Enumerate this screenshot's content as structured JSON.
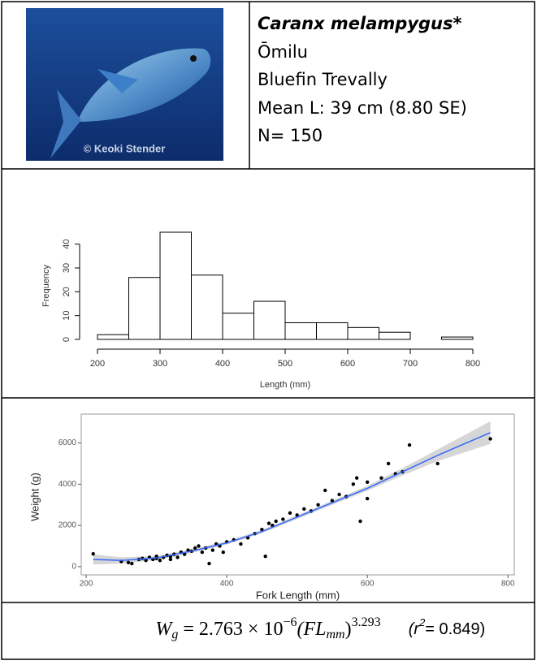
{
  "header": {
    "photo_credit": "© Keoki Stender",
    "scientific_name": "Caranx melampygus*",
    "hawaiian_name": "Ōmilu",
    "common_name": "Bluefin Trevally",
    "mean_length": "Mean L: 39 cm (8.80 SE)",
    "sample_size": "N= 150"
  },
  "histogram": {
    "type": "histogram",
    "bins": [
      200,
      250,
      300,
      350,
      400,
      450,
      500,
      550,
      600,
      650,
      700,
      750,
      800
    ],
    "counts": [
      2,
      26,
      45,
      27,
      11,
      16,
      7,
      7,
      5,
      3,
      0,
      1
    ],
    "color": "#ffffff",
    "xlim": [
      200,
      800
    ],
    "xticks": [
      200,
      300,
      400,
      500,
      600,
      700,
      800
    ],
    "ylim": [
      0,
      45
    ],
    "yticks": [
      0,
      10,
      20,
      30,
      40
    ],
    "xlabel": "Length (mm)",
    "ylabel": "Frequency"
  },
  "scatter": {
    "type": "scatter",
    "color": "#000000",
    "x": [
      210,
      250,
      260,
      265,
      275,
      280,
      285,
      290,
      295,
      300,
      300,
      305,
      310,
      315,
      320,
      320,
      325,
      330,
      335,
      340,
      345,
      350,
      355,
      360,
      365,
      370,
      375,
      380,
      385,
      390,
      395,
      400,
      410,
      420,
      430,
      440,
      450,
      455,
      460,
      465,
      470,
      480,
      490,
      500,
      510,
      520,
      530,
      540,
      550,
      560,
      570,
      580,
      585,
      590,
      600,
      600,
      620,
      630,
      640,
      650,
      660,
      700,
      775
    ],
    "y": [
      620,
      250,
      200,
      150,
      350,
      400,
      300,
      450,
      350,
      400,
      500,
      300,
      450,
      550,
      500,
      350,
      600,
      450,
      700,
      600,
      800,
      750,
      900,
      1000,
      700,
      900,
      150,
      800,
      1100,
      1000,
      700,
      1200,
      1300,
      1100,
      1400,
      1600,
      1800,
      500,
      2100,
      2000,
      2200,
      2300,
      2600,
      2500,
      2800,
      2700,
      3000,
      3700,
      3200,
      3500,
      3400,
      4000,
      4300,
      2200,
      3300,
      4100,
      4300,
      5000,
      4500,
      4600,
      5900,
      5000,
      6200
    ],
    "fit": {
      "color": "#3366ff",
      "x": [
        210,
        250,
        300,
        350,
        400,
        450,
        500,
        550,
        600,
        650,
        700,
        775
      ],
      "y": [
        350,
        300,
        420,
        750,
        1150,
        1700,
        2400,
        3100,
        3800,
        4600,
        5400,
        6500
      ],
      "lower": [
        100,
        150,
        320,
        660,
        1070,
        1620,
        2310,
        3000,
        3680,
        4420,
        5120,
        5950
      ],
      "upper": [
        600,
        450,
        520,
        840,
        1230,
        1780,
        2490,
        3200,
        3920,
        4780,
        5680,
        7050
      ]
    },
    "xlim": [
      193,
      809
    ],
    "xticks": [
      200,
      400,
      600,
      800
    ],
    "ylim": [
      -400,
      7400
    ],
    "yticks": [
      0,
      2000,
      4000,
      6000
    ],
    "xlabel": "Fork Length (mm)",
    "ylabel": "Weight (g)"
  },
  "equation": {
    "w": "W",
    "w_sub": "g",
    "coef": " =  2.763 × 10",
    "exp": "−6",
    "fl": "(FL",
    "fl_sub": "mm",
    "close": ")",
    "power": "3.293",
    "r_open": "(r",
    "r_sup": "2",
    "r_value": "= 0.849)"
  }
}
